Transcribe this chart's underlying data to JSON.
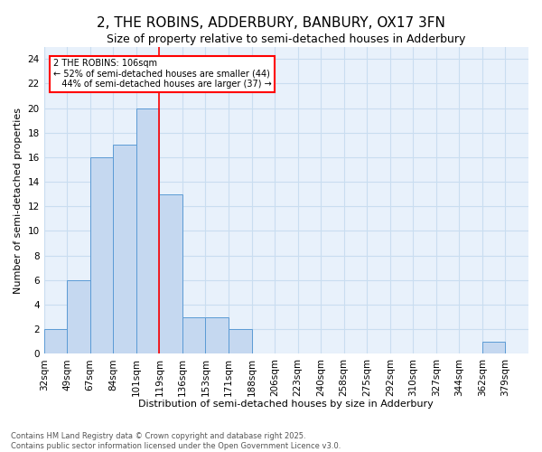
{
  "title": "2, THE ROBINS, ADDERBURY, BANBURY, OX17 3FN",
  "subtitle": "Size of property relative to semi-detached houses in Adderbury",
  "xlabel": "Distribution of semi-detached houses by size in Adderbury",
  "ylabel": "Number of semi-detached properties",
  "footer_line1": "Contains HM Land Registry data © Crown copyright and database right 2025.",
  "footer_line2": "Contains public sector information licensed under the Open Government Licence v3.0.",
  "bin_labels": [
    "32sqm",
    "49sqm",
    "67sqm",
    "84sqm",
    "101sqm",
    "119sqm",
    "136sqm",
    "153sqm",
    "171sqm",
    "188sqm",
    "206sqm",
    "223sqm",
    "240sqm",
    "258sqm",
    "275sqm",
    "292sqm",
    "310sqm",
    "327sqm",
    "344sqm",
    "362sqm",
    "379sqm"
  ],
  "bar_heights": [
    2,
    6,
    16,
    17,
    20,
    13,
    3,
    3,
    2,
    0,
    0,
    0,
    0,
    0,
    0,
    0,
    0,
    0,
    0,
    1,
    0
  ],
  "bar_color": "#c5d8f0",
  "bar_edge_color": "#5b9bd5",
  "grid_color": "#c9ddf0",
  "background_color": "#e8f1fb",
  "red_line_bin": 4,
  "annotation_text_line1": "2 THE ROBINS: 106sqm",
  "annotation_text_line2": "← 52% of semi-detached houses are smaller (44)",
  "annotation_text_line3": "   44% of semi-detached houses are larger (37) →",
  "ylim": [
    0,
    25
  ],
  "yticks": [
    0,
    2,
    4,
    6,
    8,
    10,
    12,
    14,
    16,
    18,
    20,
    22,
    24
  ],
  "title_fontsize": 11,
  "subtitle_fontsize": 9,
  "axis_label_fontsize": 8,
  "tick_fontsize": 7.5,
  "footer_fontsize": 6
}
